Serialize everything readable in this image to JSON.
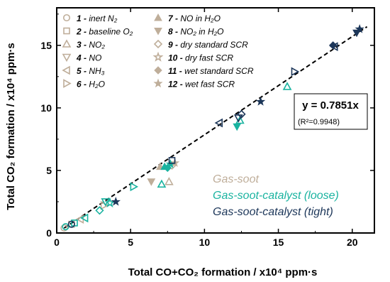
{
  "chart_data": {
    "type": "scatter",
    "xlabel": "Total CO+CO₂ formation / x10⁴ ppm·s",
    "ylabel": "Total CO₂ formation / x10⁴ ppm·s",
    "xlim": [
      0,
      21.5
    ],
    "ylim": [
      0,
      18
    ],
    "xticks": [
      0,
      5,
      10,
      15,
      20
    ],
    "yticks": [
      0,
      5,
      10,
      15
    ],
    "grid": false,
    "fit": {
      "slope": 0.7851,
      "equation": "y = 0.7851x",
      "r2": "(R²=0.9948)",
      "x_range": [
        0.5,
        21.0
      ]
    },
    "legend": {
      "placement": "top-left",
      "entries": [
        {
          "num": "1",
          "label": "inert N₂",
          "marker": "circle-open",
          "color": "#bfae9a"
        },
        {
          "num": "2",
          "label": "baseline O₂",
          "marker": "square-open",
          "color": "#bfae9a"
        },
        {
          "num": "3",
          "label": "NO₂",
          "marker": "triangle-up-open",
          "color": "#bfae9a"
        },
        {
          "num": "4",
          "label": "NO",
          "marker": "triangle-down-open",
          "color": "#bfae9a"
        },
        {
          "num": "5",
          "label": "NH₃",
          "marker": "triangle-left-open",
          "color": "#bfae9a"
        },
        {
          "num": "6",
          "label": "H₂O",
          "marker": "triangle-right-open",
          "color": "#bfae9a"
        },
        {
          "num": "7",
          "label": "NO in H₂O",
          "marker": "triangle-up-filled",
          "color": "#bfae9a"
        },
        {
          "num": "8",
          "label": "NO₂ in H₂O",
          "marker": "triangle-down-filled",
          "color": "#bfae9a"
        },
        {
          "num": "9",
          "label": "dry standard SCR",
          "marker": "diamond-open",
          "color": "#bfae9a"
        },
        {
          "num": "10",
          "label": "dry fast SCR",
          "marker": "star-open",
          "color": "#bfae9a"
        },
        {
          "num": "11",
          "label": "wet standard SCR",
          "marker": "diamond-filled",
          "color": "#bfae9a"
        },
        {
          "num": "12",
          "label": "wet fast SCR",
          "marker": "star-filled",
          "color": "#bfae9a"
        }
      ]
    },
    "groups": [
      {
        "name": "Gas-soot",
        "color": "#bfae9a",
        "style": "italic"
      },
      {
        "name": "Gas-soot-catalyst (loose)",
        "color": "#1ab3a0",
        "style": "italic"
      },
      {
        "name": "Gas-soot-catalyst (tight)",
        "color": "#1c3659",
        "style": "italic"
      }
    ],
    "series": [
      {
        "group": 0,
        "points": [
          {
            "x": 0.5,
            "y": 0.4,
            "m": "circle-open"
          },
          {
            "x": 1.0,
            "y": 0.7,
            "m": "square-open"
          },
          {
            "x": 1.6,
            "y": 1.1,
            "m": "triangle-left-open"
          },
          {
            "x": 3.2,
            "y": 2.2,
            "m": "triangle-right-open"
          },
          {
            "x": 6.4,
            "y": 4.1,
            "m": "triangle-down-filled"
          },
          {
            "x": 7.6,
            "y": 4.1,
            "m": "triangle-up-open"
          },
          {
            "x": 7.0,
            "y": 5.3,
            "m": "triangle-up-filled"
          },
          {
            "x": 7.8,
            "y": 5.4,
            "m": "diamond-open"
          },
          {
            "x": 8.0,
            "y": 5.6,
            "m": "star-filled"
          }
        ]
      },
      {
        "group": 1,
        "points": [
          {
            "x": 0.6,
            "y": 0.5,
            "m": "circle-open"
          },
          {
            "x": 1.2,
            "y": 0.8,
            "m": "square-open"
          },
          {
            "x": 1.9,
            "y": 1.2,
            "m": "triangle-left-open"
          },
          {
            "x": 2.9,
            "y": 1.8,
            "m": "diamond-open"
          },
          {
            "x": 3.3,
            "y": 2.5,
            "m": "triangle-down-open"
          },
          {
            "x": 3.6,
            "y": 2.4,
            "m": "star-open"
          },
          {
            "x": 5.2,
            "y": 3.7,
            "m": "triangle-right-open"
          },
          {
            "x": 7.1,
            "y": 3.9,
            "m": "triangle-up-open"
          },
          {
            "x": 7.3,
            "y": 5.3,
            "m": "triangle-up-filled"
          },
          {
            "x": 7.5,
            "y": 5.2,
            "m": "diamond-filled"
          },
          {
            "x": 7.7,
            "y": 5.5,
            "m": "star-filled"
          },
          {
            "x": 12.2,
            "y": 8.5,
            "m": "triangle-down-filled"
          },
          {
            "x": 12.4,
            "y": 9.0,
            "m": "triangle-up-open"
          },
          {
            "x": 15.6,
            "y": 11.7,
            "m": "triangle-up-open"
          }
        ]
      },
      {
        "group": 2,
        "points": [
          {
            "x": 1.0,
            "y": 0.7,
            "m": "circle-open"
          },
          {
            "x": 4.0,
            "y": 2.5,
            "m": "star-filled"
          },
          {
            "x": 7.8,
            "y": 5.8,
            "m": "square-open"
          },
          {
            "x": 11.0,
            "y": 8.8,
            "m": "triangle-left-open"
          },
          {
            "x": 12.3,
            "y": 9.2,
            "m": "triangle-down-open"
          },
          {
            "x": 12.5,
            "y": 9.5,
            "m": "diamond-open"
          },
          {
            "x": 13.8,
            "y": 10.5,
            "m": "star-filled"
          },
          {
            "x": 16.1,
            "y": 12.9,
            "m": "triangle-right-open"
          },
          {
            "x": 18.7,
            "y": 15.0,
            "m": "diamond-filled"
          },
          {
            "x": 18.8,
            "y": 14.9,
            "m": "triangle-left-open"
          },
          {
            "x": 20.3,
            "y": 16.0,
            "m": "triangle-down-filled"
          },
          {
            "x": 20.5,
            "y": 16.3,
            "m": "star-filled"
          }
        ]
      }
    ]
  }
}
